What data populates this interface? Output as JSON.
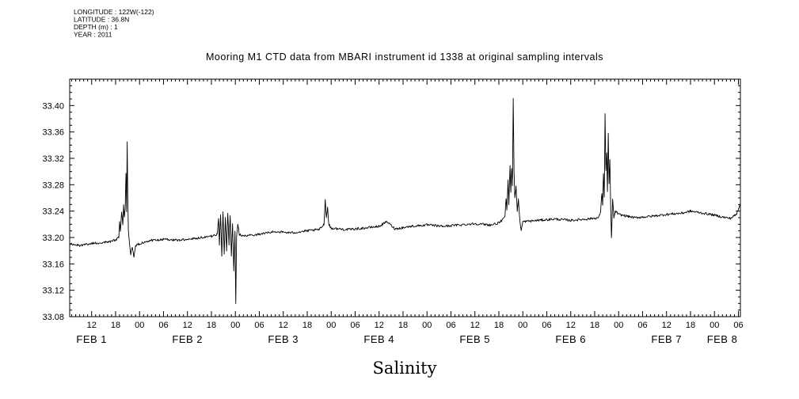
{
  "header": {
    "longitude": "LONGITUDE : 122W(-122)",
    "latitude": "LATITUDE : 36.8N",
    "depth": "DEPTH (m) : 1",
    "year": "YEAR : 2011"
  },
  "chart_data": {
    "type": "line",
    "title": "Mooring M1 CTD data from MBARI instrument id 1338 at original sampling intervals",
    "xlabel": "Salinity",
    "ylim": [
      33.08,
      33.44
    ],
    "yticks": [
      33.08,
      33.12,
      33.16,
      33.2,
      33.24,
      33.28,
      33.32,
      33.36,
      33.4
    ],
    "ytick_labels": [
      "33.08",
      "33.12",
      "33.16",
      "33.20",
      "33.24",
      "33.28",
      "33.32",
      "33.36",
      "33.40"
    ],
    "y_minor_step": 0.01,
    "y_major_step": 0.04,
    "x_domain_hours": [
      6.5,
      174.5
    ],
    "x_minor_step_hours": 1,
    "x_major_step_hours": 6,
    "xtick_hours": [
      12,
      18,
      24,
      30,
      36,
      42,
      48,
      54,
      60,
      66,
      72,
      78,
      84,
      90,
      96,
      102,
      108,
      114,
      120,
      126,
      132,
      138,
      144,
      150,
      156,
      162,
      168,
      174
    ],
    "xtick_labels": [
      "12",
      "18",
      "00",
      "06",
      "12",
      "18",
      "00",
      "06",
      "12",
      "18",
      "00",
      "06",
      "12",
      "18",
      "00",
      "06",
      "12",
      "18",
      "00",
      "06",
      "12",
      "18",
      "00",
      "06",
      "12",
      "18",
      "00",
      "06"
    ],
    "day_labels": [
      "FEB 1",
      "FEB 2",
      "FEB 3",
      "FEB 4",
      "FEB 5",
      "FEB 6",
      "FEB 7",
      "FEB 8"
    ],
    "day_label_noon_hours": [
      12,
      36,
      60,
      84,
      108,
      132,
      156,
      180
    ],
    "line_color": "#000000",
    "background": "#ffffff",
    "grid": false,
    "noise_amplitude": 0.0018,
    "sample_step_hours": 0.15,
    "series": [
      {
        "name": "salinity",
        "keypoints": [
          [
            6.5,
            33.19
          ],
          [
            9,
            33.188
          ],
          [
            12,
            33.191
          ],
          [
            14,
            33.192
          ],
          [
            16,
            33.193
          ],
          [
            18,
            33.196
          ],
          [
            18.8,
            33.2
          ],
          [
            19,
            33.225
          ],
          [
            19.2,
            33.208
          ],
          [
            19.5,
            33.238
          ],
          [
            19.8,
            33.22
          ],
          [
            20,
            33.248
          ],
          [
            20.2,
            33.23
          ],
          [
            20.4,
            33.245
          ],
          [
            20.6,
            33.298
          ],
          [
            20.75,
            33.24
          ],
          [
            20.9,
            33.345
          ],
          [
            21.05,
            33.26
          ],
          [
            21.2,
            33.21
          ],
          [
            21.5,
            33.19
          ],
          [
            21.8,
            33.175
          ],
          [
            22.2,
            33.186
          ],
          [
            22.6,
            33.17
          ],
          [
            23,
            33.188
          ],
          [
            26,
            33.195
          ],
          [
            30,
            33.197
          ],
          [
            34,
            33.196
          ],
          [
            38,
            33.199
          ],
          [
            42,
            33.202
          ],
          [
            43.5,
            33.205
          ],
          [
            43.8,
            33.23
          ],
          [
            44,
            33.19
          ],
          [
            44.3,
            33.235
          ],
          [
            44.6,
            33.172
          ],
          [
            44.9,
            33.24
          ],
          [
            45.2,
            33.176
          ],
          [
            45.5,
            33.23
          ],
          [
            45.8,
            33.18
          ],
          [
            46.1,
            33.238
          ],
          [
            46.4,
            33.19
          ],
          [
            46.7,
            33.234
          ],
          [
            47,
            33.172
          ],
          [
            47.3,
            33.22
          ],
          [
            47.6,
            33.15
          ],
          [
            47.9,
            33.21
          ],
          [
            48.1,
            33.098
          ],
          [
            48.3,
            33.2
          ],
          [
            48.6,
            33.22
          ],
          [
            49,
            33.205
          ],
          [
            50,
            33.202
          ],
          [
            54,
            33.205
          ],
          [
            58,
            33.209
          ],
          [
            62,
            33.207
          ],
          [
            66,
            33.21
          ],
          [
            69,
            33.212
          ],
          [
            70.2,
            33.22
          ],
          [
            70.5,
            33.258
          ],
          [
            70.8,
            33.23
          ],
          [
            71.1,
            33.246
          ],
          [
            71.4,
            33.22
          ],
          [
            72,
            33.214
          ],
          [
            76,
            33.212
          ],
          [
            80,
            33.214
          ],
          [
            84,
            33.217
          ],
          [
            86,
            33.224
          ],
          [
            88,
            33.213
          ],
          [
            92,
            33.217
          ],
          [
            96,
            33.219
          ],
          [
            100,
            33.217
          ],
          [
            104,
            33.219
          ],
          [
            108,
            33.221
          ],
          [
            112,
            33.219
          ],
          [
            114,
            33.222
          ],
          [
            115.5,
            33.23
          ],
          [
            115.8,
            33.26
          ],
          [
            116,
            33.24
          ],
          [
            116.3,
            33.288
          ],
          [
            116.5,
            33.25
          ],
          [
            116.8,
            33.308
          ],
          [
            117,
            33.27
          ],
          [
            117.2,
            33.306
          ],
          [
            117.4,
            33.28
          ],
          [
            117.6,
            33.412
          ],
          [
            117.8,
            33.3
          ],
          [
            118,
            33.26
          ],
          [
            118.3,
            33.278
          ],
          [
            118.6,
            33.24
          ],
          [
            118.9,
            33.258
          ],
          [
            119.2,
            33.23
          ],
          [
            119.6,
            33.21
          ],
          [
            120,
            33.224
          ],
          [
            124,
            33.226
          ],
          [
            128,
            33.228
          ],
          [
            132,
            33.226
          ],
          [
            136,
            33.228
          ],
          [
            139,
            33.23
          ],
          [
            139.5,
            33.24
          ],
          [
            139.8,
            33.268
          ],
          [
            140,
            33.25
          ],
          [
            140.2,
            33.298
          ],
          [
            140.4,
            33.26
          ],
          [
            140.6,
            33.388
          ],
          [
            140.8,
            33.3
          ],
          [
            141,
            33.33
          ],
          [
            141.2,
            33.27
          ],
          [
            141.4,
            33.358
          ],
          [
            141.6,
            33.28
          ],
          [
            141.8,
            33.318
          ],
          [
            142,
            33.25
          ],
          [
            142.2,
            33.198
          ],
          [
            142.5,
            33.258
          ],
          [
            142.8,
            33.23
          ],
          [
            143.2,
            33.24
          ],
          [
            144,
            33.235
          ],
          [
            148,
            33.23
          ],
          [
            152,
            33.232
          ],
          [
            156,
            33.235
          ],
          [
            160,
            33.237
          ],
          [
            162,
            33.24
          ],
          [
            164,
            33.238
          ],
          [
            166,
            33.236
          ],
          [
            168,
            33.234
          ],
          [
            170,
            33.231
          ],
          [
            172,
            33.229
          ],
          [
            173.5,
            33.235
          ],
          [
            174.5,
            33.252
          ]
        ]
      }
    ]
  }
}
